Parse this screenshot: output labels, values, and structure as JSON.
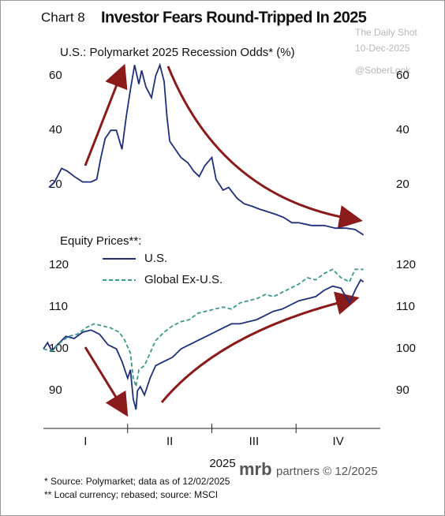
{
  "header": {
    "chart_label": "Chart 8",
    "title": "Investor Fears Round-Tripped In 2025",
    "watermark": [
      "The Daily Shot",
      "10-Dec-2025",
      "@SoberLook"
    ]
  },
  "chart_data": [
    {
      "type": "line",
      "title": "U.S.: Polymarket 2025 Recession Odds* (%)",
      "xlim": [
        0,
        12
      ],
      "ylim": [
        0,
        65
      ],
      "yticks": [
        20,
        40,
        60
      ],
      "series": [
        {
          "name": "U.S.: Polymarket 2025 Recession Odds* (%)",
          "color": "#1f2f7a",
          "x": [
            0.2,
            0.4,
            0.65,
            0.85,
            1.1,
            1.4,
            1.7,
            1.9,
            2.05,
            2.2,
            2.4,
            2.6,
            2.8,
            2.95,
            3.1,
            3.25,
            3.4,
            3.5,
            3.65,
            3.85,
            4.0,
            4.15,
            4.3,
            4.4,
            4.5,
            4.7,
            4.9,
            5.15,
            5.35,
            5.55,
            5.75,
            6.0,
            6.15,
            6.4,
            6.6,
            6.9,
            7.15,
            7.45,
            7.7,
            8.0,
            8.3,
            8.55,
            8.85,
            9.1,
            9.55,
            10.0,
            10.4,
            10.8,
            11.1,
            11.4
          ],
          "values": [
            19,
            21,
            26,
            25,
            23,
            21,
            21,
            22,
            30,
            37,
            40,
            40,
            33,
            45,
            55,
            64,
            57,
            62,
            56,
            52,
            60,
            64,
            58,
            45,
            36,
            33,
            30,
            28,
            25,
            23,
            27,
            30,
            22,
            18,
            19,
            15,
            13,
            12,
            11,
            10,
            9,
            8,
            6,
            6,
            5,
            5,
            4,
            4,
            3.5,
            1.5
          ]
        }
      ]
    },
    {
      "type": "line",
      "title": "Equity Prices**:",
      "x_label": "2025",
      "xlim": [
        0,
        12
      ],
      "xticks": [
        {
          "value": 1.5,
          "label": "I"
        },
        {
          "value": 4.5,
          "label": "II"
        },
        {
          "value": 7.5,
          "label": "III"
        },
        {
          "value": 10.5,
          "label": "IV"
        }
      ],
      "x_tick_marks": [
        3,
        6,
        9
      ],
      "ylim": [
        81,
        127
      ],
      "yticks": [
        90,
        100,
        110,
        120
      ],
      "series": [
        {
          "name": "U.S.",
          "color": "#1f2f7a",
          "dash": false,
          "x": [
            0,
            0.15,
            0.3,
            0.5,
            0.8,
            1.1,
            1.4,
            1.7,
            2.0,
            2.3,
            2.6,
            2.8,
            3.0,
            3.1,
            3.2,
            3.3,
            3.35,
            3.45,
            3.6,
            3.8,
            4.0,
            4.3,
            4.6,
            4.9,
            5.2,
            5.5,
            5.8,
            6.1,
            6.4,
            6.7,
            7.0,
            7.3,
            7.6,
            7.9,
            8.2,
            8.5,
            8.8,
            9.1,
            9.4,
            9.7,
            10.0,
            10.3,
            10.6,
            10.9,
            11.1,
            11.3,
            11.4
          ],
          "values": [
            100,
            101.5,
            99.5,
            101,
            103,
            102.5,
            104,
            104.5,
            103.5,
            101,
            100,
            97,
            93,
            95,
            88,
            85.5,
            90,
            91,
            89,
            93,
            96,
            97,
            98,
            100,
            101,
            102,
            103,
            104,
            105,
            106,
            106,
            106.5,
            107,
            108,
            109,
            109.5,
            110.5,
            111.5,
            112,
            112.5,
            114,
            115,
            114.5,
            111,
            114,
            116.5,
            116
          ]
        },
        {
          "name": "Global Ex-U.S.",
          "color": "#3a9a8c",
          "dash": true,
          "x": [
            0,
            0.3,
            0.6,
            0.9,
            1.2,
            1.5,
            1.8,
            2.1,
            2.4,
            2.7,
            2.9,
            3.1,
            3.2,
            3.3,
            3.4,
            3.6,
            3.8,
            4.0,
            4.3,
            4.6,
            4.9,
            5.2,
            5.5,
            5.8,
            6.1,
            6.4,
            6.7,
            7.0,
            7.3,
            7.6,
            7.9,
            8.2,
            8.5,
            8.8,
            9.1,
            9.4,
            9.7,
            10.0,
            10.3,
            10.6,
            10.9,
            11.1,
            11.3,
            11.4
          ],
          "values": [
            100,
            99.5,
            101.5,
            103,
            103.5,
            105,
            106,
            105.5,
            105,
            104,
            102,
            99,
            93,
            91,
            95,
            96,
            99,
            102,
            104,
            105.5,
            106.5,
            107,
            108.5,
            109,
            109.5,
            110,
            109.5,
            111,
            111.5,
            112,
            113,
            112.5,
            113.5,
            114.5,
            115.5,
            117,
            116.5,
            118,
            119,
            117,
            116,
            119,
            119,
            119
          ]
        }
      ]
    }
  ],
  "footer": {
    "logo": "mrb",
    "logo_text": "partners © 12/2025",
    "notes": [
      "* Source: Polymarket; data as of 12/02/2025",
      "** Local currency; rebased; source: MSCI"
    ]
  }
}
